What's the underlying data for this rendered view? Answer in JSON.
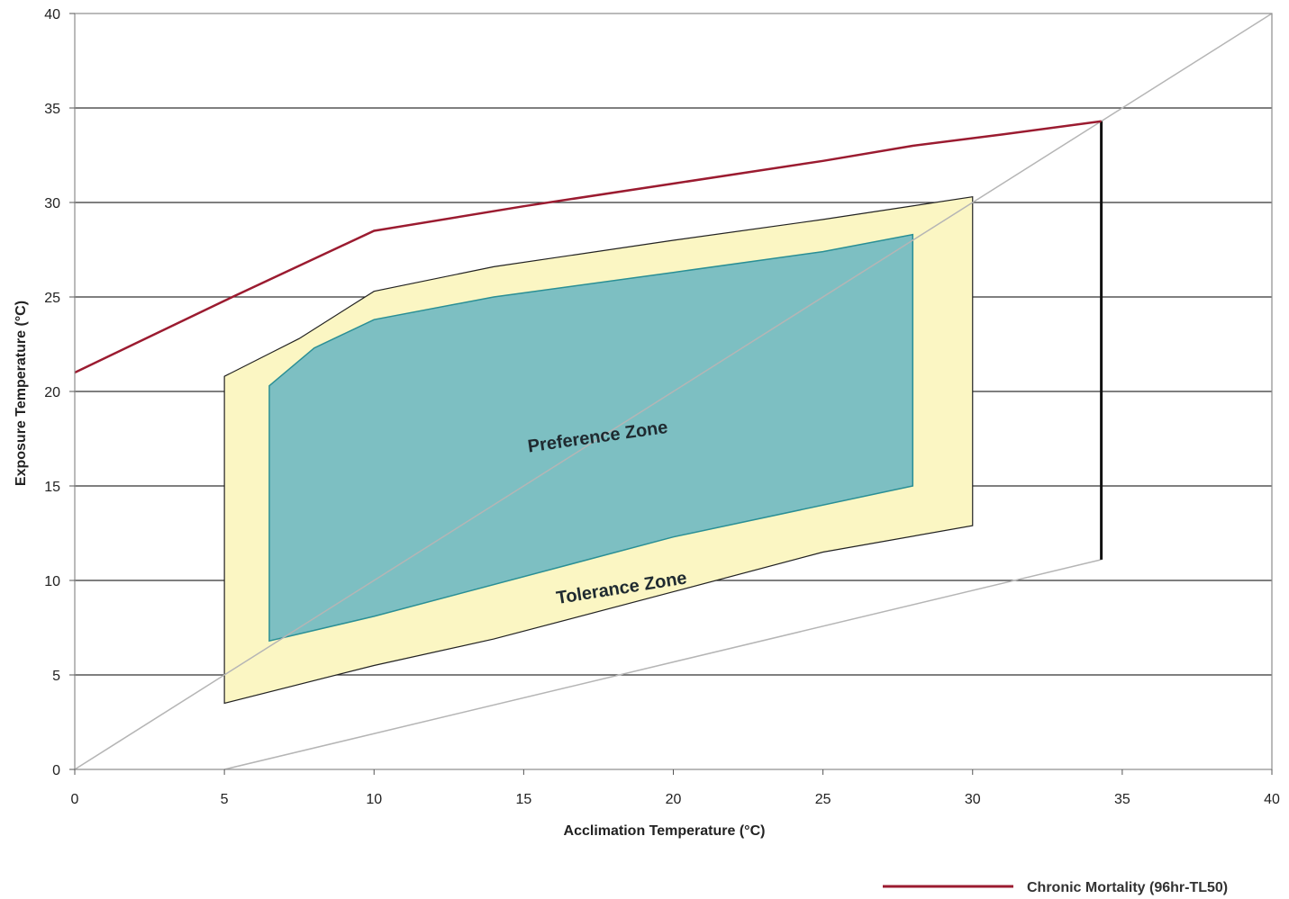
{
  "chart_data": {
    "type": "line",
    "xlabel": "Acclimation Temperature (°C)",
    "ylabel": "Exposure Temperature (°C)",
    "xlim": [
      0,
      40
    ],
    "ylim": [
      0,
      40
    ],
    "xticks": [
      0,
      5,
      10,
      15,
      20,
      25,
      30,
      35,
      40
    ],
    "yticks": [
      0,
      5,
      10,
      15,
      20,
      25,
      30,
      35,
      40
    ],
    "horizontal_gridlines": true,
    "legend_position": "bottom-right",
    "colors": {
      "mortality": "#9b1b30",
      "tolerance_fill": "#fbf6c3",
      "preference_fill": "#7dbfc2",
      "preference_edge": "#2a8f95",
      "reference_line": "#b5b5b5",
      "gridline": "#333333"
    },
    "series": [
      {
        "name": "Chronic Mortality (96hr-TL50)",
        "x": [
          0,
          5,
          10,
          15,
          20,
          25,
          28,
          31,
          34.3
        ],
        "y": [
          21,
          24.8,
          28.5,
          29.8,
          31,
          32.2,
          33,
          33.6,
          34.3
        ]
      }
    ],
    "reference_lines": [
      {
        "x": [
          0,
          40
        ],
        "y": [
          0,
          40
        ]
      },
      {
        "x": [
          5,
          34.3
        ],
        "y": [
          0,
          11.1
        ]
      }
    ],
    "vertical_limit": {
      "x": 34.3,
      "y": [
        11.1,
        34.3
      ]
    },
    "zones": [
      {
        "label": "Tolerance Zone",
        "polygon": [
          [
            5,
            20.8
          ],
          [
            6.5,
            22
          ],
          [
            7.5,
            22.8
          ],
          [
            10,
            25.3
          ],
          [
            14,
            26.6
          ],
          [
            20,
            28
          ],
          [
            25,
            29.1
          ],
          [
            30,
            30.3
          ],
          [
            30,
            12.9
          ],
          [
            25,
            11.5
          ],
          [
            20,
            9.4
          ],
          [
            14,
            6.9
          ],
          [
            10,
            5.5
          ],
          [
            5,
            3.5
          ]
        ]
      },
      {
        "label": "Preference Zone",
        "polygon": [
          [
            6.5,
            20.3
          ],
          [
            8,
            22.3
          ],
          [
            10,
            23.8
          ],
          [
            14,
            25
          ],
          [
            20,
            26.3
          ],
          [
            25,
            27.4
          ],
          [
            28,
            28.3
          ],
          [
            28,
            15
          ],
          [
            20,
            12.3
          ],
          [
            10,
            8.1
          ],
          [
            6.5,
            6.8
          ]
        ]
      }
    ]
  }
}
